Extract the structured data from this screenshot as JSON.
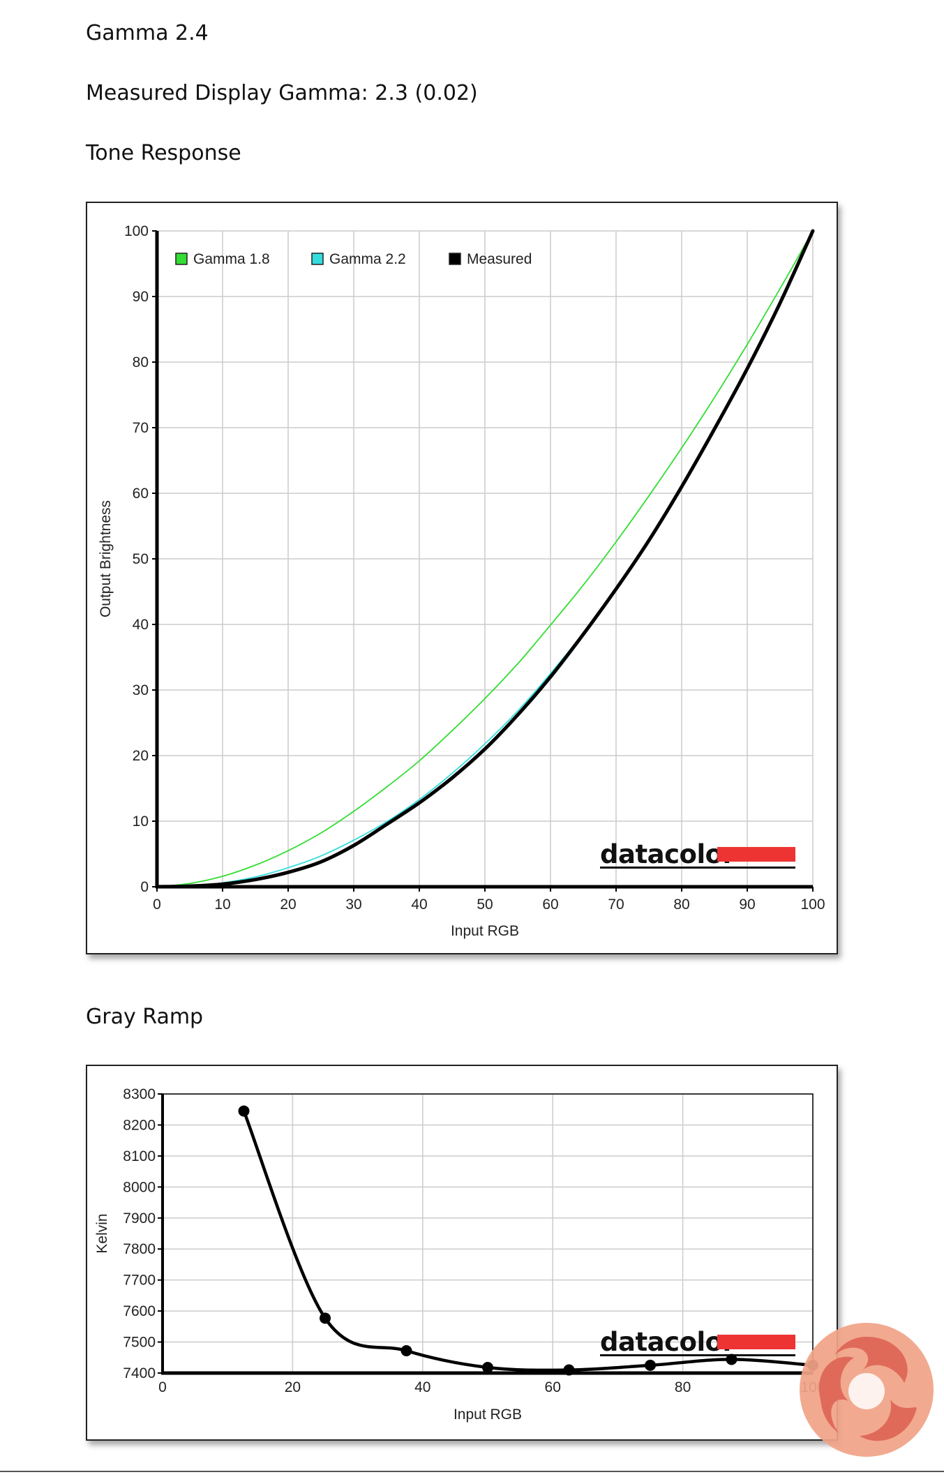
{
  "page": {
    "heading_gamma": "Gamma 2.4",
    "heading_measured": "Measured Display Gamma: 2.3 (0.02)",
    "heading_tone": "Tone Response",
    "heading_gray": "Gray Ramp"
  },
  "brand": {
    "name": "datacolor",
    "accent_color": "#ee3333"
  },
  "watermark": {
    "icon": "swirl-logo-icon",
    "colors": [
      "#f0a488",
      "#e06a5a"
    ]
  },
  "chart_data": [
    {
      "type": "line",
      "title": "",
      "xlabel": "Input RGB",
      "ylabel": "Output Brightness",
      "xlim": [
        0,
        100
      ],
      "ylim": [
        0,
        100
      ],
      "x_ticks": [
        "0",
        "10",
        "20",
        "30",
        "40",
        "50",
        "60",
        "70",
        "80",
        "90",
        "100"
      ],
      "y_ticks": [
        "0",
        "10",
        "20",
        "30",
        "40",
        "50",
        "60",
        "70",
        "80",
        "90",
        "100"
      ],
      "grid": true,
      "legend_position": "top-left",
      "series": [
        {
          "name": "Gamma 1.8",
          "color": "#33dd33",
          "x": [
            0,
            5,
            10,
            15,
            20,
            25,
            30,
            35,
            40,
            45,
            50,
            55,
            60,
            65,
            70,
            75,
            80,
            85,
            90,
            95,
            100
          ],
          "y": [
            0,
            0.5,
            1.6,
            3.3,
            5.5,
            8.2,
            11.5,
            15.2,
            19.2,
            23.8,
            28.7,
            34.0,
            39.9,
            46.0,
            52.6,
            59.6,
            66.9,
            74.6,
            82.7,
            91.2,
            100
          ]
        },
        {
          "name": "Gamma 2.2",
          "color": "#33dddd",
          "x": [
            0,
            5,
            10,
            15,
            20,
            25,
            30,
            35,
            40,
            45,
            50,
            55,
            60,
            65,
            70,
            75,
            80,
            85,
            90,
            95,
            100
          ],
          "y": [
            0,
            0.1,
            0.6,
            1.5,
            2.9,
            4.7,
            7.1,
            9.9,
            13.3,
            17.3,
            21.8,
            26.8,
            32.5,
            38.7,
            45.6,
            53.1,
            61.2,
            69.9,
            79.3,
            89.3,
            100
          ]
        },
        {
          "name": "Measured",
          "color": "#000000",
          "x": [
            0,
            5,
            10,
            15,
            20,
            25,
            30,
            35,
            40,
            45,
            50,
            55,
            60,
            65,
            70,
            75,
            80,
            85,
            90,
            95,
            100
          ],
          "y": [
            0,
            0.1,
            0.4,
            1.1,
            2.2,
            3.8,
            6.3,
            9.5,
            12.8,
            16.6,
            21.0,
            26.2,
            32.0,
            38.5,
            45.4,
            52.8,
            61.0,
            69.8,
            79.0,
            89.0,
            100
          ]
        }
      ]
    },
    {
      "type": "line",
      "title": "",
      "xlabel": "Input RGB",
      "ylabel": "Kelvin",
      "xlim": [
        0,
        100
      ],
      "ylim": [
        7400,
        8300
      ],
      "x_ticks": [
        "0",
        "20",
        "40",
        "60",
        "80",
        "100"
      ],
      "y_ticks": [
        "7400",
        "7500",
        "7600",
        "7700",
        "7800",
        "7900",
        "8000",
        "8100",
        "8200",
        "8300"
      ],
      "grid": true,
      "series": [
        {
          "color": "#000000",
          "x": [
            12.5,
            25,
            37.5,
            50,
            62.5,
            75,
            87.5,
            100
          ],
          "y": [
            8245,
            7577,
            7472,
            7418,
            7410,
            7425,
            7444,
            7425
          ]
        }
      ]
    }
  ]
}
